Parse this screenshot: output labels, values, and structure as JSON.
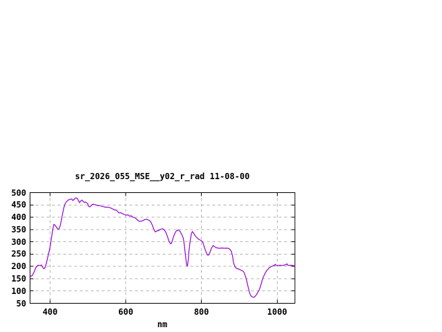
{
  "window": {
    "background": "#ffffff"
  },
  "chart_data": {
    "type": "line",
    "title": "sr_2026_055_MSE__y02_r_rad 11-08-00",
    "xlabel": "nm",
    "ylabel": "",
    "xlim": [
      347,
      1047
    ],
    "ylim": [
      50,
      500
    ],
    "x_ticks": [
      400,
      600,
      800,
      1000
    ],
    "y_ticks": [
      50,
      100,
      150,
      200,
      250,
      300,
      350,
      400,
      450,
      500
    ],
    "grid": true,
    "legend_position": "none",
    "colors": {
      "line": "#9400D3",
      "grid": "#b0b0b0",
      "border": "#000000",
      "text": "#000000"
    },
    "series": [
      {
        "name": "sr_2026_055_MSE__y02_r_rad 11-08-00",
        "points": [
          [
            347,
            163
          ],
          [
            350,
            160
          ],
          [
            353,
            163
          ],
          [
            356,
            172
          ],
          [
            359,
            182
          ],
          [
            362,
            194
          ],
          [
            365,
            200
          ],
          [
            368,
            205
          ],
          [
            371,
            204
          ],
          [
            374,
            203
          ],
          [
            377,
            206
          ],
          [
            380,
            197
          ],
          [
            383,
            191
          ],
          [
            386,
            193
          ],
          [
            388,
            202
          ],
          [
            390,
            213
          ],
          [
            393,
            232
          ],
          [
            396,
            252
          ],
          [
            399,
            272
          ],
          [
            402,
            298
          ],
          [
            405,
            330
          ],
          [
            408,
            358
          ],
          [
            410,
            371
          ],
          [
            413,
            368
          ],
          [
            416,
            361
          ],
          [
            419,
            355
          ],
          [
            421,
            350
          ],
          [
            424,
            354
          ],
          [
            427,
            367
          ],
          [
            430,
            390
          ],
          [
            433,
            414
          ],
          [
            436,
            437
          ],
          [
            439,
            452
          ],
          [
            442,
            461
          ],
          [
            445,
            466
          ],
          [
            448,
            470
          ],
          [
            451,
            472
          ],
          [
            454,
            473
          ],
          [
            457,
            474
          ],
          [
            460,
            468
          ],
          [
            463,
            472
          ],
          [
            466,
            477
          ],
          [
            469,
            479
          ],
          [
            472,
            476
          ],
          [
            475,
            467
          ],
          [
            478,
            459
          ],
          [
            481,
            466
          ],
          [
            484,
            470
          ],
          [
            487,
            465
          ],
          [
            490,
            461
          ],
          [
            493,
            462
          ],
          [
            496,
            459
          ],
          [
            499,
            456
          ],
          [
            502,
            444
          ],
          [
            505,
            442
          ],
          [
            508,
            446
          ],
          [
            511,
            451
          ],
          [
            514,
            453
          ],
          [
            517,
            452
          ],
          [
            521,
            450
          ],
          [
            526,
            447
          ],
          [
            531,
            447
          ],
          [
            536,
            445
          ],
          [
            541,
            443
          ],
          [
            546,
            441
          ],
          [
            551,
            441
          ],
          [
            556,
            440
          ],
          [
            561,
            437
          ],
          [
            566,
            433
          ],
          [
            571,
            429
          ],
          [
            574,
            430
          ],
          [
            578,
            424
          ],
          [
            581,
            419
          ],
          [
            584,
            417
          ],
          [
            587,
            419
          ],
          [
            590,
            415
          ],
          [
            594,
            413
          ],
          [
            598,
            410
          ],
          [
            602,
            408
          ],
          [
            606,
            410
          ],
          [
            610,
            404
          ],
          [
            614,
            406
          ],
          [
            618,
            401
          ],
          [
            622,
            399
          ],
          [
            626,
            396
          ],
          [
            630,
            390
          ],
          [
            634,
            385
          ],
          [
            638,
            383
          ],
          [
            642,
            384
          ],
          [
            646,
            387
          ],
          [
            650,
            390
          ],
          [
            654,
            392
          ],
          [
            658,
            390
          ],
          [
            662,
            387
          ],
          [
            666,
            381
          ],
          [
            670,
            368
          ],
          [
            674,
            352
          ],
          [
            678,
            340
          ],
          [
            682,
            344
          ],
          [
            686,
            346
          ],
          [
            690,
            349
          ],
          [
            694,
            352
          ],
          [
            698,
            353
          ],
          [
            702,
            348
          ],
          [
            706,
            338
          ],
          [
            710,
            322
          ],
          [
            714,
            303
          ],
          [
            718,
            292
          ],
          [
            721,
            295
          ],
          [
            724,
            310
          ],
          [
            728,
            328
          ],
          [
            732,
            341
          ],
          [
            736,
            347
          ],
          [
            740,
            348
          ],
          [
            744,
            341
          ],
          [
            748,
            330
          ],
          [
            752,
            315
          ],
          [
            755,
            285
          ],
          [
            758,
            240
          ],
          [
            761,
            205
          ],
          [
            763,
            201
          ],
          [
            765,
            225
          ],
          [
            767,
            262
          ],
          [
            770,
            300
          ],
          [
            773,
            330
          ],
          [
            776,
            342
          ],
          [
            779,
            336
          ],
          [
            782,
            328
          ],
          [
            786,
            320
          ],
          [
            790,
            314
          ],
          [
            794,
            309
          ],
          [
            798,
            306
          ],
          [
            801,
            303
          ],
          [
            804,
            296
          ],
          [
            807,
            282
          ],
          [
            810,
            267
          ],
          [
            813,
            256
          ],
          [
            816,
            246
          ],
          [
            819,
            246
          ],
          [
            822,
            255
          ],
          [
            825,
            268
          ],
          [
            828,
            278
          ],
          [
            831,
            285
          ],
          [
            834,
            281
          ],
          [
            838,
            277
          ],
          [
            842,
            275
          ],
          [
            846,
            274
          ],
          [
            850,
            274
          ],
          [
            854,
            275
          ],
          [
            858,
            274
          ],
          [
            862,
            274
          ],
          [
            866,
            274
          ],
          [
            870,
            274
          ],
          [
            873,
            272
          ],
          [
            876,
            268
          ],
          [
            879,
            261
          ],
          [
            882,
            243
          ],
          [
            885,
            215
          ],
          [
            888,
            200
          ],
          [
            891,
            194
          ],
          [
            894,
            191
          ],
          [
            897,
            190
          ],
          [
            900,
            188
          ],
          [
            904,
            185
          ],
          [
            907,
            183
          ],
          [
            910,
            181
          ],
          [
            913,
            174
          ],
          [
            916,
            162
          ],
          [
            919,
            146
          ],
          [
            922,
            126
          ],
          [
            925,
            105
          ],
          [
            928,
            89
          ],
          [
            931,
            80
          ],
          [
            934,
            76
          ],
          [
            937,
            75
          ],
          [
            940,
            76
          ],
          [
            943,
            80
          ],
          [
            946,
            87
          ],
          [
            949,
            95
          ],
          [
            952,
            103
          ],
          [
            955,
            114
          ],
          [
            958,
            129
          ],
          [
            961,
            146
          ],
          [
            964,
            158
          ],
          [
            967,
            168
          ],
          [
            970,
            177
          ],
          [
            973,
            184
          ],
          [
            976,
            189
          ],
          [
            979,
            194
          ],
          [
            982,
            197
          ],
          [
            985,
            200
          ],
          [
            988,
            202
          ],
          [
            991,
            204
          ],
          [
            993,
            204
          ],
          [
            995,
            209
          ],
          [
            997,
            204
          ],
          [
            1000,
            204
          ],
          [
            1004,
            204
          ],
          [
            1008,
            205
          ],
          [
            1012,
            204
          ],
          [
            1016,
            204
          ],
          [
            1020,
            206
          ],
          [
            1024,
            207
          ],
          [
            1026,
            211
          ],
          [
            1028,
            205
          ],
          [
            1032,
            204
          ],
          [
            1036,
            205
          ],
          [
            1040,
            204
          ],
          [
            1044,
            203
          ],
          [
            1047,
            202
          ]
        ]
      }
    ]
  }
}
